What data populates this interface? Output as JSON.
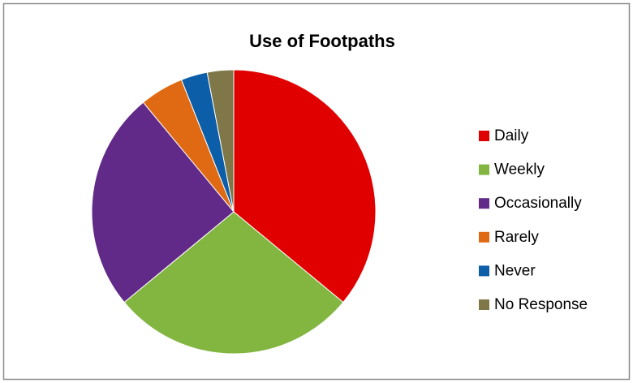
{
  "chart_data": {
    "type": "pie",
    "title": "Use of Footpaths",
    "categories": [
      "Daily",
      "Weekly",
      "Occasionally",
      "Rarely",
      "Never",
      "No Response"
    ],
    "values": [
      36,
      28,
      25,
      5,
      3,
      3
    ],
    "colors": [
      "#e00000",
      "#82b641",
      "#622a88",
      "#e06a14",
      "#0c5ea8",
      "#7f7748"
    ],
    "legend": "right"
  }
}
